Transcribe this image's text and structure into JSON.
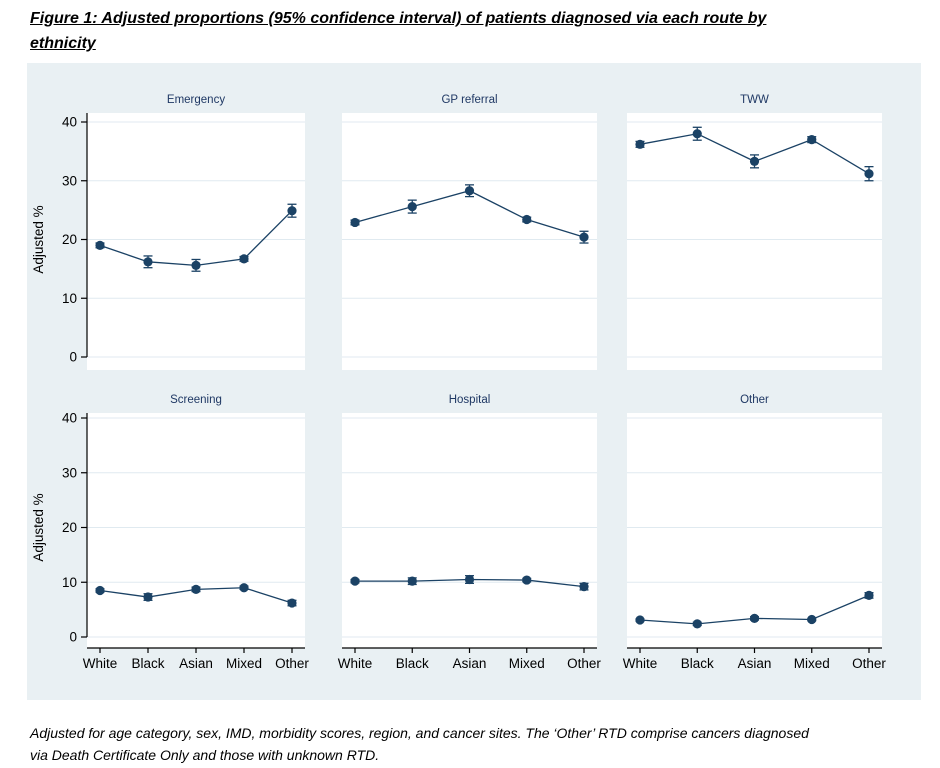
{
  "header": {
    "line1": "Figure 1: Adjusted proportions (95% confidence interval) of patients diagnosed via each route by",
    "line2": "ethnicity"
  },
  "footnote": {
    "line1": "Adjusted for age category, sex, IMD, morbidity scores, region, and cancer sites. The ‘Other’ RTD comprise cancers diagnosed",
    "line2": "via Death Certificate Only and those with unknown RTD."
  },
  "chart_data": {
    "type": "line",
    "title": "Figure 1: Adjusted proportions (95% confidence interval) of patients diagnosed via each route by ethnicity",
    "layout": "small multiples, 2 rows x 3 columns, shared axes",
    "categories": [
      "White",
      "Black",
      "Asian",
      "Mixed",
      "Other"
    ],
    "xlabel": "",
    "ylabel": "Adjusted %",
    "ylim": [
      0,
      40
    ],
    "yticks": [
      0,
      10,
      20,
      30,
      40
    ],
    "grid": true,
    "marker": "filled-circle",
    "error_bars": "95% CI with caps",
    "panels": [
      {
        "title": "Emergency",
        "values": [
          19.0,
          16.2,
          15.6,
          16.7,
          24.9
        ],
        "ci_halfwidth": [
          0.4,
          1.0,
          1.0,
          0.4,
          1.1
        ]
      },
      {
        "title": "GP referral",
        "values": [
          22.9,
          25.6,
          28.3,
          23.4,
          20.4
        ],
        "ci_halfwidth": [
          0.4,
          1.1,
          1.0,
          0.4,
          1.0
        ]
      },
      {
        "title": "TWW",
        "values": [
          36.2,
          38.0,
          33.3,
          37.0,
          31.2
        ],
        "ci_halfwidth": [
          0.5,
          1.1,
          1.1,
          0.5,
          1.2
        ]
      },
      {
        "title": "Screening",
        "values": [
          8.5,
          7.3,
          8.7,
          9.0,
          6.2
        ],
        "ci_halfwidth": [
          0.3,
          0.6,
          0.4,
          0.3,
          0.5
        ]
      },
      {
        "title": "Hospital",
        "values": [
          10.2,
          10.2,
          10.5,
          10.4,
          9.2
        ],
        "ci_halfwidth": [
          0.3,
          0.6,
          0.7,
          0.3,
          0.6
        ]
      },
      {
        "title": "Other",
        "values": [
          3.1,
          2.4,
          3.4,
          3.2,
          7.6
        ],
        "ci_halfwidth": [
          0.2,
          0.3,
          0.3,
          0.2,
          0.5
        ]
      }
    ],
    "colors": {
      "figure_bg": "#e9f0f3",
      "plot_bg": "#ffffff",
      "gridline": "#e0eaf0",
      "series": "#1b4265",
      "panel_title": "#1f3864",
      "axis_text": "#000000",
      "axis_line": "#000000"
    }
  }
}
